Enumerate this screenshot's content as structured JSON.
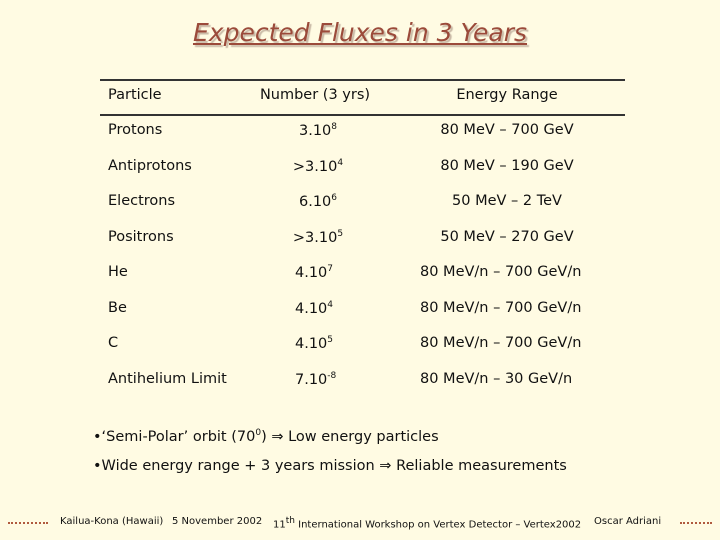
{
  "title": "Expected Fluxes in 3 Years",
  "table": {
    "header": [
      "Particle",
      "Number (3 yrs)",
      "Energy Range"
    ],
    "rows": [
      {
        "particle": "Protons",
        "number": {
          "base": "3.10",
          "exp": "8"
        },
        "range": "80 MeV – 700 GeV"
      },
      {
        "particle": "Antiprotons",
        "number": {
          "base": ">3.10",
          "exp": "4"
        },
        "range": "80 MeV – 190 GeV"
      },
      {
        "particle": "Electrons",
        "number": {
          "base": "6.10",
          "exp": "6"
        },
        "range": "50 MeV – 2 TeV"
      },
      {
        "particle": "Positrons",
        "number": {
          "base": ">3.10",
          "exp": "5"
        },
        "range": "50 MeV – 270 GeV"
      },
      {
        "particle": "He",
        "number": {
          "base": "4.10",
          "exp": "7"
        },
        "range": "80 MeV/n – 700 GeV/n"
      },
      {
        "particle": "Be",
        "number": {
          "base": "4.10",
          "exp": "4"
        },
        "range": "80 MeV/n – 700 GeV/n"
      },
      {
        "particle": "C",
        "number": {
          "base": "4.10",
          "exp": "5"
        },
        "range": "80 MeV/n – 700 GeV/n"
      },
      {
        "particle": "Antihelium Limit",
        "number": {
          "base": "7.10",
          "exp": "-8"
        },
        "range": "80 MeV/n – 30 GeV/n"
      }
    ]
  },
  "bullets": [
    {
      "before": "•‘Semi-Polar’ orbit (70",
      "sup": "0",
      "after": ") ⇒ Low energy particles"
    },
    {
      "before": "•Wide energy range + 3 years mission ⇒ Reliable measurements",
      "sup": "",
      "after": ""
    }
  ],
  "footer": {
    "place": "Kailua-Kona (Hawaii)",
    "date": "5 November 2002",
    "conference": {
      "before": "11",
      "sup": "th",
      "after": " International Workshop on Vertex Detector – Vertex2002"
    },
    "author": "Oscar Adriani"
  }
}
